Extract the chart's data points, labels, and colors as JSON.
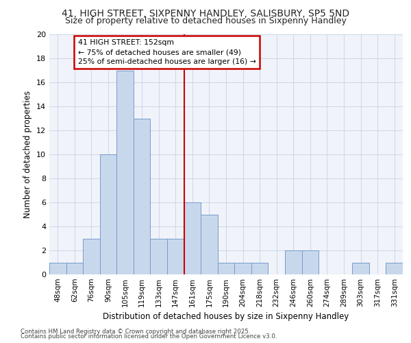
{
  "title_line1": "41, HIGH STREET, SIXPENNY HANDLEY, SALISBURY, SP5 5ND",
  "title_line2": "Size of property relative to detached houses in Sixpenny Handley",
  "xlabel": "Distribution of detached houses by size in Sixpenny Handley",
  "ylabel": "Number of detached properties",
  "footer_line1": "Contains HM Land Registry data © Crown copyright and database right 2025.",
  "footer_line2": "Contains public sector information licensed under the Open Government Licence v3.0.",
  "bin_labels": [
    "48sqm",
    "62sqm",
    "76sqm",
    "90sqm",
    "105sqm",
    "119sqm",
    "133sqm",
    "147sqm",
    "161sqm",
    "175sqm",
    "190sqm",
    "204sqm",
    "218sqm",
    "232sqm",
    "246sqm",
    "260sqm",
    "274sqm",
    "289sqm",
    "303sqm",
    "317sqm",
    "331sqm"
  ],
  "bar_values": [
    1,
    1,
    3,
    10,
    17,
    13,
    3,
    3,
    6,
    5,
    1,
    1,
    1,
    0,
    2,
    2,
    0,
    0,
    1,
    0,
    1
  ],
  "bar_color": "#c8d8ec",
  "bar_edge_color": "#7799cc",
  "grid_color": "#d0d8e8",
  "background_color": "#eef2f8",
  "plot_bg_color": "#f0f4fa",
  "red_line_x": 7.5,
  "annotation_text": "41 HIGH STREET: 152sqm\n← 75% of detached houses are smaller (49)\n25% of semi-detached houses are larger (16) →",
  "annotation_box_color": "#ffffff",
  "annotation_box_edge": "#cc0000",
  "ylim": [
    0,
    20
  ],
  "yticks": [
    0,
    2,
    4,
    6,
    8,
    10,
    12,
    14,
    16,
    18,
    20
  ]
}
